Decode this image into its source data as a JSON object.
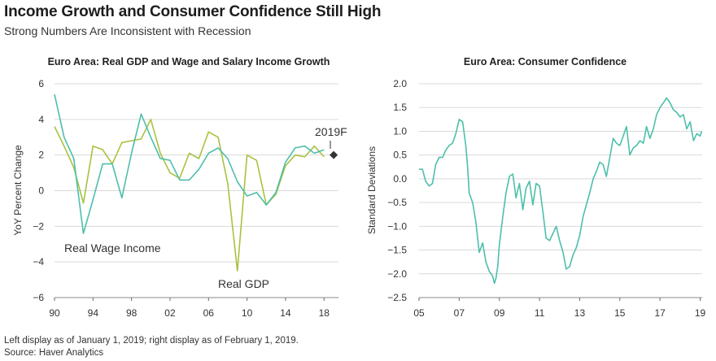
{
  "title": "Income Growth and Consumer Confidence Still High",
  "subtitle": "Strong Numbers Are Inconsistent with Recession",
  "footnotes": {
    "line1": "Left display as of January 1, 2019; right display as of February 1, 2019.",
    "line2": "Source: Haver Analytics"
  },
  "colors": {
    "wage": "#4dbfab",
    "gdp": "#a9c23f",
    "confidence": "#4dbfab",
    "grid": "#d9d9d9",
    "marker": "#333333"
  },
  "chart_data": [
    {
      "type": "line",
      "title": "Euro Area: Real GDP and Wage and Salary Income Growth",
      "xlabel": "",
      "ylabel": "YoY Percent Change",
      "xlim": [
        1990,
        2019.5
      ],
      "ylim": [
        -6,
        6
      ],
      "yticks": [
        6,
        4,
        2,
        0,
        -2,
        -4,
        -6
      ],
      "yticklabels": [
        "6",
        "4",
        "2",
        "0",
        "−2",
        "−4",
        "−6"
      ],
      "xticks": [
        1990,
        1994,
        1998,
        2002,
        2006,
        2010,
        2014,
        2018
      ],
      "xticklabels": [
        "90",
        "94",
        "98",
        "02",
        "06",
        "10",
        "14",
        "18"
      ],
      "grid": true,
      "series": [
        {
          "name": "Real Wage Income",
          "x": [
            1990,
            1991,
            1992,
            1993,
            1994,
            1995,
            1996,
            1997,
            1998,
            1999,
            2000,
            2001,
            2002,
            2003,
            2004,
            2005,
            2006,
            2007,
            2008,
            2009,
            2010,
            2011,
            2012,
            2013,
            2014,
            2015,
            2016,
            2017,
            2018
          ],
          "values": [
            5.4,
            3.0,
            1.8,
            -2.4,
            -0.5,
            1.5,
            1.5,
            -0.4,
            2.1,
            4.3,
            3.0,
            1.8,
            1.7,
            0.6,
            0.6,
            1.2,
            2.1,
            2.4,
            1.8,
            0.5,
            -0.3,
            -0.1,
            -0.8,
            -0.1,
            1.6,
            2.4,
            2.5,
            2.1,
            2.3
          ]
        },
        {
          "name": "Real GDP",
          "x": [
            1990,
            1991,
            1992,
            1993,
            1994,
            1995,
            1996,
            1997,
            1998,
            1999,
            2000,
            2001,
            2002,
            2003,
            2004,
            2005,
            2006,
            2007,
            2008,
            2009,
            2010,
            2011,
            2012,
            2013,
            2014,
            2015,
            2016,
            2017,
            2018
          ],
          "values": [
            3.6,
            2.5,
            1.3,
            -0.7,
            2.5,
            2.3,
            1.5,
            2.7,
            2.8,
            2.9,
            4.0,
            2.1,
            1.0,
            0.7,
            2.1,
            1.8,
            3.3,
            3.0,
            0.4,
            -4.5,
            2.0,
            1.7,
            -0.8,
            -0.2,
            1.4,
            2.0,
            1.9,
            2.5,
            1.9
          ]
        }
      ],
      "annotations": [
        {
          "text": "Real Wage Income",
          "series": "Real Wage Income"
        },
        {
          "text": "Real GDP",
          "series": "Real GDP"
        },
        {
          "text": "2019F",
          "x": 2019,
          "y": 2.0
        }
      ]
    },
    {
      "type": "line",
      "title": "Euro Area: Consumer Confidence",
      "xlabel": "",
      "ylabel": "Standard Deviations",
      "xlim": [
        2005,
        2019.1
      ],
      "ylim": [
        -2.5,
        2.0
      ],
      "yticks": [
        2.0,
        1.5,
        1.0,
        0.5,
        0.0,
        -0.5,
        -1.0,
        -1.5,
        -2.0,
        -2.5
      ],
      "yticklabels": [
        "2.0",
        "1.5",
        "1.0",
        "0.5",
        "0.0",
        "−0.5",
        "−1.0",
        "−1.5",
        "−2.0",
        "−2.5"
      ],
      "xticks": [
        2005,
        2007,
        2009,
        2011,
        2013,
        2015,
        2017,
        2019
      ],
      "xticklabels": [
        "05",
        "07",
        "09",
        "11",
        "13",
        "15",
        "17",
        "19"
      ],
      "grid": true,
      "series": [
        {
          "name": "Consumer Confidence",
          "x": [
            2005.0,
            2005.17,
            2005.33,
            2005.5,
            2005.67,
            2005.83,
            2006.0,
            2006.17,
            2006.33,
            2006.5,
            2006.67,
            2006.83,
            2007.0,
            2007.17,
            2007.33,
            2007.42,
            2007.5,
            2007.67,
            2007.83,
            2008.0,
            2008.17,
            2008.33,
            2008.5,
            2008.67,
            2008.75,
            2008.83,
            2008.92,
            2009.0,
            2009.17,
            2009.33,
            2009.5,
            2009.67,
            2009.83,
            2010.0,
            2010.17,
            2010.33,
            2010.5,
            2010.67,
            2010.83,
            2011.0,
            2011.17,
            2011.33,
            2011.5,
            2011.67,
            2011.83,
            2012.0,
            2012.17,
            2012.33,
            2012.5,
            2012.67,
            2012.83,
            2013.0,
            2013.17,
            2013.33,
            2013.5,
            2013.67,
            2013.83,
            2014.0,
            2014.17,
            2014.33,
            2014.5,
            2014.67,
            2014.83,
            2015.0,
            2015.17,
            2015.33,
            2015.5,
            2015.67,
            2015.83,
            2016.0,
            2016.17,
            2016.33,
            2016.5,
            2016.67,
            2016.83,
            2017.0,
            2017.17,
            2017.33,
            2017.5,
            2017.67,
            2017.83,
            2018.0,
            2018.17,
            2018.33,
            2018.5,
            2018.67,
            2018.83,
            2019.0,
            2019.08
          ],
          "values": [
            0.2,
            0.2,
            -0.05,
            -0.15,
            -0.1,
            0.3,
            0.45,
            0.45,
            0.6,
            0.7,
            0.75,
            0.95,
            1.25,
            1.2,
            0.7,
            0.25,
            -0.3,
            -0.5,
            -0.9,
            -1.55,
            -1.35,
            -1.75,
            -1.95,
            -2.05,
            -2.2,
            -2.1,
            -1.85,
            -1.4,
            -0.8,
            -0.3,
            0.05,
            0.1,
            -0.4,
            -0.1,
            -0.65,
            -0.2,
            -0.05,
            -0.55,
            -0.1,
            -0.15,
            -0.7,
            -1.25,
            -1.3,
            -1.15,
            -1.0,
            -1.3,
            -1.55,
            -1.9,
            -1.85,
            -1.6,
            -1.45,
            -1.2,
            -0.8,
            -0.55,
            -0.3,
            0.0,
            0.15,
            0.35,
            0.3,
            0.05,
            0.45,
            0.85,
            0.75,
            0.7,
            0.9,
            1.1,
            0.5,
            0.65,
            0.7,
            0.8,
            0.75,
            1.1,
            0.85,
            1.05,
            1.35,
            1.5,
            1.6,
            1.7,
            1.6,
            1.45,
            1.4,
            1.3,
            1.35,
            1.05,
            1.2,
            0.8,
            0.95,
            0.9,
            1.0
          ]
        }
      ]
    }
  ]
}
